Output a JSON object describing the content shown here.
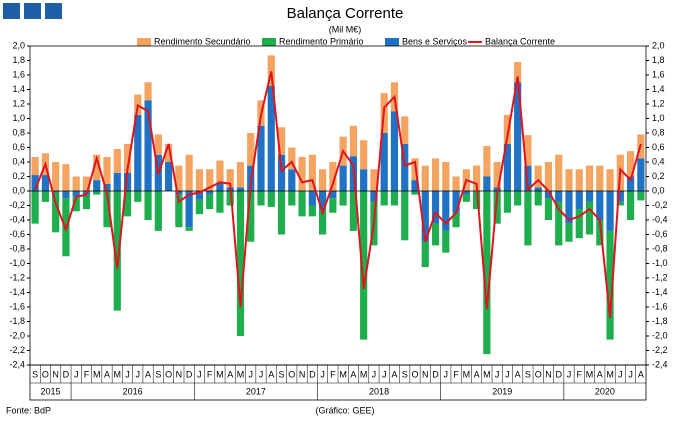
{
  "chart_data": {
    "type": "bar",
    "title": "Balança Corrente",
    "subtitle": "(Mil M€)",
    "source": "Fonte: BdP",
    "credit": "(Gráfico: GEE)",
    "categories": [
      "S",
      "O",
      "N",
      "D",
      "J",
      "F",
      "M",
      "A",
      "M",
      "J",
      "J",
      "A",
      "S",
      "O",
      "N",
      "D",
      "J",
      "F",
      "M",
      "A",
      "M",
      "J",
      "J",
      "A",
      "S",
      "O",
      "N",
      "D",
      "J",
      "F",
      "M",
      "A",
      "M",
      "J",
      "J",
      "A",
      "S",
      "O",
      "N",
      "D",
      "J",
      "F",
      "M",
      "A",
      "M",
      "J",
      "J",
      "A",
      "S",
      "O",
      "N",
      "D",
      "J",
      "F",
      "M",
      "A",
      "M",
      "J",
      "J",
      "A"
    ],
    "years": [
      "2015",
      "2016",
      "2017",
      "2018",
      "2019",
      "2020"
    ],
    "series": [
      {
        "name": "Rendimento Secundário",
        "color": "#f4a460",
        "kind": "bar",
        "values": [
          0.25,
          0.3,
          0.4,
          0.37,
          0.2,
          0.2,
          0.35,
          0.37,
          0.33,
          0.4,
          0.28,
          0.25,
          0.28,
          0.25,
          0.35,
          0.5,
          0.3,
          0.3,
          0.3,
          0.25,
          0.35,
          0.45,
          0.35,
          0.42,
          0.38,
          0.3,
          0.47,
          0.5,
          0.3,
          0.4,
          0.4,
          0.42,
          0.4,
          0.3,
          0.55,
          0.4,
          0.38,
          0.3,
          0.35,
          0.45,
          0.4,
          0.2,
          0.3,
          0.35,
          0.42,
          0.35,
          0.4,
          0.28,
          0.42,
          0.3,
          0.4,
          0.5,
          0.3,
          0.3,
          0.35,
          0.35,
          0.3,
          0.5,
          0.35,
          0.33
        ]
      },
      {
        "name": "Rendimento Primário",
        "color": "#1fae4e",
        "kind": "bar",
        "values": [
          -0.45,
          -0.15,
          -0.55,
          -0.8,
          -0.2,
          -0.2,
          -0.05,
          -0.5,
          -1.65,
          -0.35,
          -0.15,
          -0.4,
          -0.55,
          0.0,
          -0.45,
          -0.05,
          -0.2,
          -0.2,
          -0.3,
          -0.2,
          -2.0,
          -0.7,
          -0.2,
          -0.22,
          -0.6,
          -0.2,
          -0.35,
          -0.15,
          -0.35,
          -0.2,
          -0.2,
          -0.55,
          -2.05,
          -0.6,
          -0.2,
          -0.2,
          -0.68,
          -0.05,
          -0.35,
          -0.3,
          -0.3,
          -0.2,
          -0.1,
          -0.25,
          -2.25,
          -0.45,
          -0.3,
          -0.2,
          -0.75,
          -0.2,
          -0.3,
          -0.6,
          -0.25,
          -0.4,
          -0.45,
          -0.35,
          -1.5,
          -0.05,
          -0.4,
          -0.13
        ]
      },
      {
        "name": "Bens e Serviços",
        "color": "#1f72c4",
        "kind": "bar",
        "values": [
          0.22,
          0.22,
          -0.02,
          -0.1,
          -0.08,
          -0.05,
          0.15,
          0.1,
          0.25,
          0.25,
          1.05,
          1.25,
          0.5,
          0.4,
          -0.05,
          -0.5,
          -0.12,
          -0.05,
          0.12,
          0.05,
          0.05,
          0.35,
          0.9,
          1.45,
          0.5,
          0.3,
          0.0,
          -0.2,
          -0.25,
          -0.1,
          0.35,
          0.48,
          0.3,
          -0.15,
          0.8,
          1.1,
          0.65,
          0.15,
          -0.7,
          -0.45,
          -0.55,
          -0.3,
          -0.05,
          0.0,
          0.2,
          0.05,
          0.65,
          1.5,
          0.35,
          0.05,
          -0.1,
          -0.15,
          -0.45,
          -0.25,
          -0.15,
          -0.4,
          -0.55,
          -0.15,
          0.2,
          0.45
        ]
      },
      {
        "name": "Balança Corrente",
        "color": "#e0141e",
        "kind": "line",
        "values": [
          0.02,
          0.37,
          -0.17,
          -0.53,
          -0.08,
          -0.05,
          0.45,
          -0.03,
          -1.07,
          0.3,
          1.18,
          1.1,
          0.23,
          0.65,
          -0.15,
          -0.05,
          -0.02,
          0.05,
          0.12,
          0.1,
          -1.6,
          0.1,
          1.05,
          1.65,
          0.28,
          0.4,
          0.12,
          0.15,
          -0.3,
          0.1,
          0.55,
          0.35,
          -1.35,
          -0.45,
          1.15,
          1.3,
          0.35,
          0.4,
          -0.7,
          -0.3,
          -0.45,
          -0.3,
          0.15,
          0.1,
          -1.63,
          -0.05,
          0.75,
          1.58,
          0.02,
          0.15,
          0.0,
          -0.25,
          -0.4,
          -0.35,
          -0.25,
          -0.4,
          -1.75,
          0.3,
          0.15,
          0.65
        ]
      }
    ],
    "ylim": [
      -2.4,
      2.0
    ],
    "yticks": [
      {
        "value": -2.4,
        "label": "-2,4"
      },
      {
        "value": -2.2,
        "label": "-2,2"
      },
      {
        "value": -2.0,
        "label": "-2,0"
      },
      {
        "value": -1.8,
        "label": "-1,8"
      },
      {
        "value": -1.6,
        "label": "-1,6"
      },
      {
        "value": -1.4,
        "label": "-1,4"
      },
      {
        "value": -1.2,
        "label": "-1,2"
      },
      {
        "value": -1.0,
        "label": "-1,0"
      },
      {
        "value": -0.8,
        "label": "-0,8"
      },
      {
        "value": -0.6,
        "label": "-0,6"
      },
      {
        "value": -0.4,
        "label": "-0,4"
      },
      {
        "value": -0.2,
        "label": "-0,2"
      },
      {
        "value": 0,
        "label": "0,0"
      },
      {
        "value": 0.2,
        "label": "0,2"
      },
      {
        "value": 0.4,
        "label": "0,4"
      },
      {
        "value": 0.6,
        "label": "0,6"
      },
      {
        "value": 0.8,
        "label": "0,8"
      },
      {
        "value": 1.0,
        "label": "1,0"
      },
      {
        "value": 1.2,
        "label": "1,2"
      },
      {
        "value": 1.4,
        "label": "1,4"
      },
      {
        "value": 1.6,
        "label": "1,6"
      },
      {
        "value": 1.8,
        "label": "1,8"
      },
      {
        "value": 2.0,
        "label": "2,0"
      }
    ],
    "y2lim": [
      -2.4,
      2.0
    ]
  }
}
